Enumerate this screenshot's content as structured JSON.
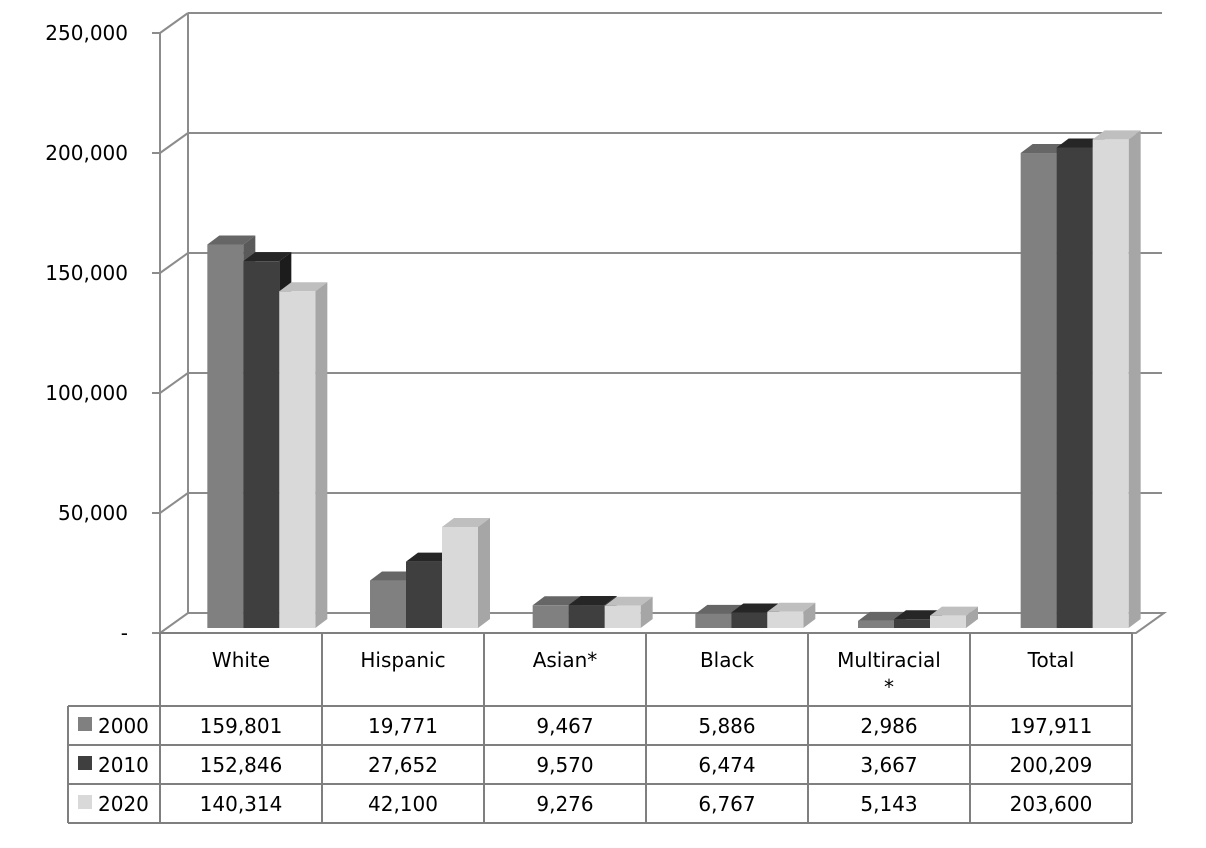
{
  "chart_data": {
    "type": "bar",
    "title": "",
    "xlabel": "",
    "ylabel": "",
    "categories": [
      "White",
      "Hispanic",
      "Asian*",
      "Black",
      "Multiracial*",
      "Total"
    ],
    "category_label_lines": [
      [
        "White"
      ],
      [
        "Hispanic"
      ],
      [
        "Asian*"
      ],
      [
        "Black"
      ],
      [
        "Multiracial",
        "*"
      ],
      [
        "Total"
      ]
    ],
    "series": [
      {
        "name": "2000",
        "values": [
          159801,
          19771,
          9467,
          5886,
          2986,
          197911
        ],
        "display": [
          "159,801",
          "19,771",
          "9,467",
          "5,886",
          "2,986",
          "197,911"
        ]
      },
      {
        "name": "2010",
        "values": [
          152846,
          27652,
          9570,
          6474,
          3667,
          200209
        ],
        "display": [
          "152,846",
          "27,652",
          "9,570",
          "6,474",
          "3,667",
          "200,209"
        ]
      },
      {
        "name": "2020",
        "values": [
          140314,
          42100,
          9276,
          6767,
          5143,
          203600
        ],
        "display": [
          "140,314",
          "42,100",
          "9,276",
          "6,767",
          "5,143",
          "203,600"
        ]
      }
    ],
    "ylim": [
      0,
      250000
    ],
    "yticks": [
      0,
      50000,
      100000,
      150000,
      200000,
      250000
    ],
    "ytick_labels": [
      "-",
      "50,000",
      "100,000",
      "150,000",
      "200,000",
      "250,000"
    ],
    "grid": true,
    "style": "3d-clustered-column",
    "data_table": true,
    "colors": {
      "2000": {
        "front": "#808080",
        "top": "#666666",
        "side": "#5a5a5a"
      },
      "2010": {
        "front": "#3f3f3f",
        "top": "#262626",
        "side": "#1c1c1c"
      },
      "2020": {
        "front": "#d9d9d9",
        "top": "#bfbfbf",
        "side": "#a6a6a6"
      },
      "grid": "#8c8c8c",
      "table_border": "#7f7f7f"
    }
  }
}
